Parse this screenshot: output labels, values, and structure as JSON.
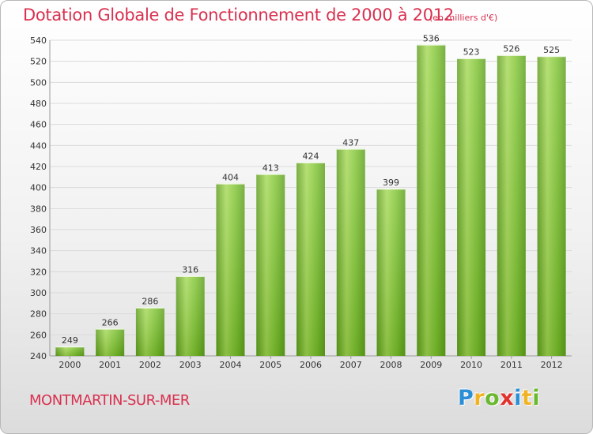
{
  "chart_data": {
    "type": "bar",
    "title": "Dotation Globale de Fonctionnement de 2000 à 2012",
    "subtitle": "(en milliers d'€)",
    "xlabel": "",
    "ylabel": "",
    "categories": [
      "2000",
      "2001",
      "2002",
      "2003",
      "2004",
      "2005",
      "2006",
      "2007",
      "2008",
      "2009",
      "2010",
      "2011",
      "2012"
    ],
    "values": [
      249,
      266,
      286,
      316,
      404,
      413,
      424,
      437,
      399,
      536,
      523,
      526,
      525
    ],
    "value_labels": [
      "249",
      "266",
      "286",
      "316",
      "404",
      "413",
      "424",
      "437",
      "399",
      "536",
      "523",
      "526",
      "525"
    ],
    "ylim": [
      240,
      540
    ],
    "yticks": [
      "240",
      "260",
      "280",
      "300",
      "320",
      "340",
      "360",
      "380",
      "400",
      "420",
      "440",
      "460",
      "480",
      "500",
      "520",
      "540"
    ],
    "grid": true,
    "bar_color": "#7cc230",
    "bar_highlight_color": "#a6d957",
    "bar_shadow_color": "#5e9e1d"
  },
  "footer": {
    "commune": "MONTMARTIN-SUR-MER",
    "brand_letters": [
      {
        "char": "P",
        "color": "#2c8fd6"
      },
      {
        "char": "r",
        "color": "#f0b323"
      },
      {
        "char": "o",
        "color": "#6ab82f"
      },
      {
        "char": "x",
        "color": "#e2322d"
      },
      {
        "char": "i",
        "color": "#2c8fd6"
      },
      {
        "char": "t",
        "color": "#f0b323"
      },
      {
        "char": "i",
        "color": "#6ab82f"
      }
    ]
  },
  "colors": {
    "title": "#d9304f",
    "axis_text": "#333333",
    "grid": "#dadada"
  }
}
